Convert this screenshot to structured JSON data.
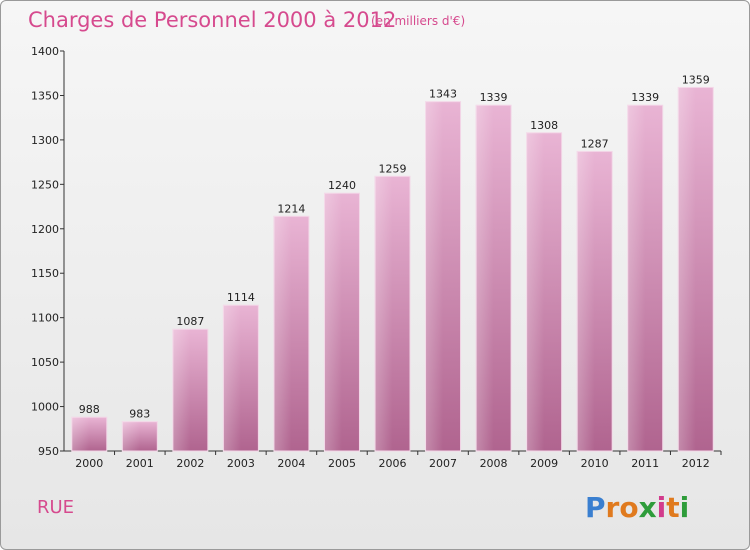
{
  "title": "Charges de Personnel 2000 à 2012",
  "subtitle": "(en milliers d'€)",
  "commune": "RUE",
  "logo": {
    "letters": [
      {
        "ch": "P",
        "color": "#3a7fd0"
      },
      {
        "ch": "r",
        "color": "#e07a1e"
      },
      {
        "ch": "o",
        "color": "#e07a1e"
      },
      {
        "ch": "x",
        "color": "#2e9c3a"
      },
      {
        "ch": "i",
        "color": "#d23b8c"
      },
      {
        "ch": "t",
        "color": "#e07a1e"
      },
      {
        "ch": "i",
        "color": "#2e9c3a"
      }
    ]
  },
  "colors": {
    "bar_top": "#e9b4d4",
    "bar_bottom": "#b0648f",
    "title": "#d64a8e"
  },
  "chart_data": {
    "type": "bar",
    "categories": [
      "2000",
      "2001",
      "2002",
      "2003",
      "2004",
      "2005",
      "2006",
      "2007",
      "2008",
      "2009",
      "2010",
      "2011",
      "2012"
    ],
    "values": [
      988,
      983,
      1087,
      1114,
      1214,
      1240,
      1259,
      1343,
      1339,
      1308,
      1287,
      1339,
      1359
    ],
    "title": "Charges de Personnel 2000 à 2012",
    "subtitle": "(en milliers d'€)",
    "xlabel": "",
    "ylabel": "",
    "ylim": [
      950,
      1400
    ],
    "yticks": [
      950,
      1000,
      1050,
      1100,
      1150,
      1200,
      1250,
      1300,
      1350,
      1400
    ],
    "grid": false,
    "legend": "none"
  }
}
